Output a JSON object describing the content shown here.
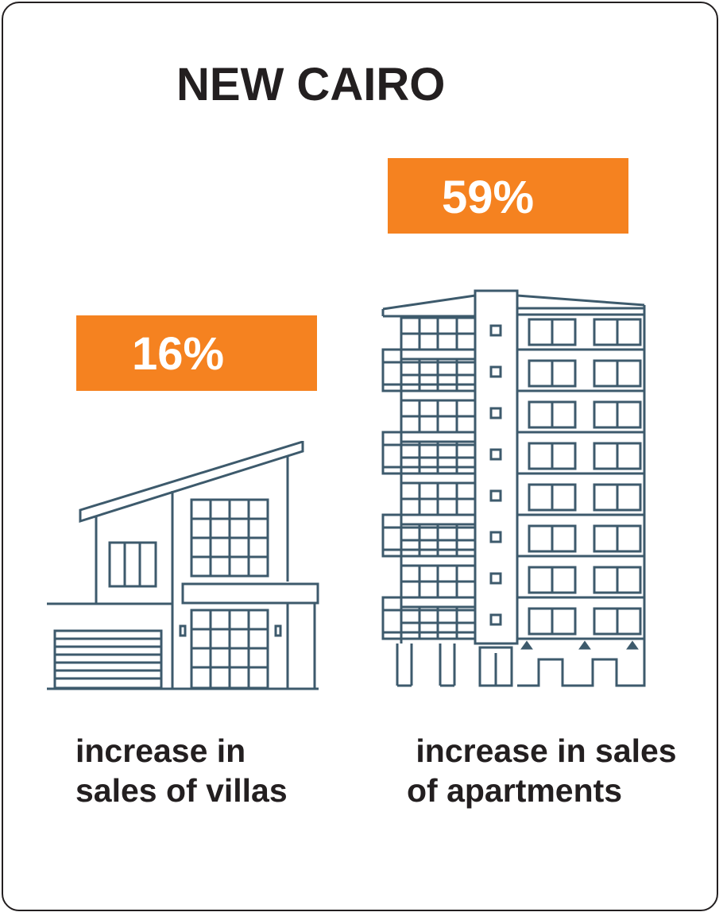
{
  "title": "NEW CAIRO",
  "villa": {
    "percent": "16%",
    "caption_line1": "increase in",
    "caption_line2": "sales of villas",
    "icon": "villa-icon"
  },
  "apartment": {
    "percent": "59%",
    "caption_line1": " increase in sales",
    "caption_line2": "of apartments",
    "icon": "apartment-building-icon"
  },
  "colors": {
    "accent": "#f58220",
    "text": "#231f20",
    "line_art": "#3d5a6c"
  }
}
